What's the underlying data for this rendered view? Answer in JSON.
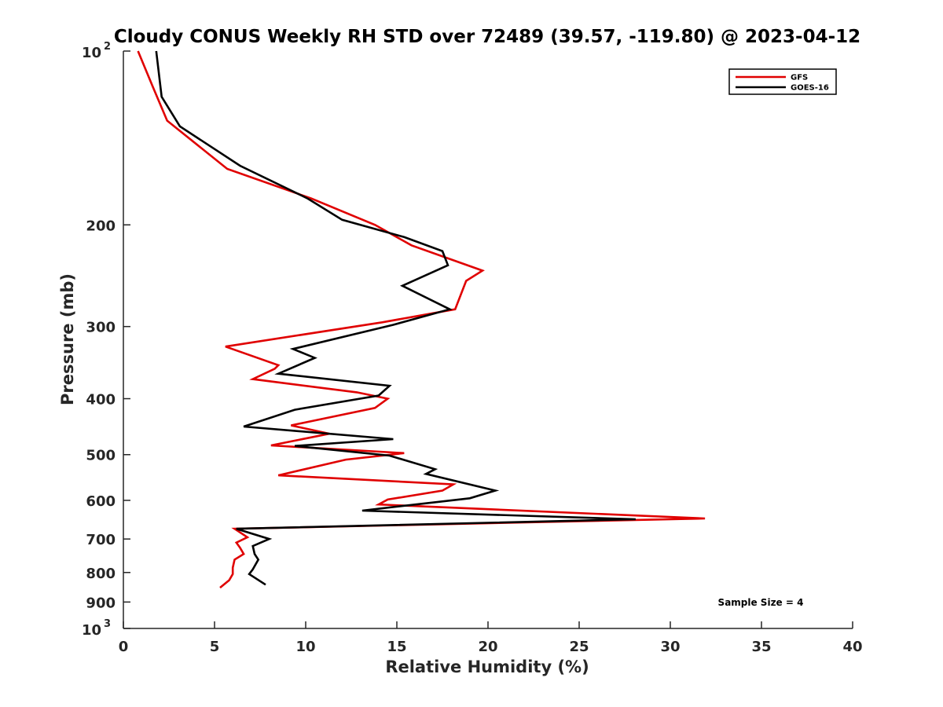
{
  "chart_data": {
    "type": "line",
    "title": "Cloudy CONUS Weekly RH STD over 72489 (39.57, -119.80) @ 2023-04-12",
    "xlabel": "Relative Humidity (%)",
    "ylabel": "Pressure (mb)",
    "xlim": [
      0,
      40
    ],
    "ylim": [
      100,
      1000
    ],
    "yscale": "log",
    "y_reversed": true,
    "grid": false,
    "legend_position": "top-right",
    "xticks": [
      "0",
      "5",
      "10",
      "15",
      "20",
      "25",
      "30",
      "35",
      "40"
    ],
    "yticks": [
      {
        "value": 100,
        "base": "10",
        "exp": "2"
      },
      {
        "value": 200,
        "label": "200"
      },
      {
        "value": 300,
        "label": "300"
      },
      {
        "value": 400,
        "label": "400"
      },
      {
        "value": 500,
        "label": "500"
      },
      {
        "value": 600,
        "label": "600"
      },
      {
        "value": 700,
        "label": "700"
      },
      {
        "value": 800,
        "label": "800"
      },
      {
        "value": 900,
        "label": "900"
      },
      {
        "value": 1000,
        "base": "10",
        "exp": "3"
      }
    ],
    "annotation": "Sample Size = 4",
    "series": [
      {
        "name": "GFS",
        "color": "#e00000",
        "points": [
          [
            0.8,
            100
          ],
          [
            1.6,
            115
          ],
          [
            2.4,
            132
          ],
          [
            5.7,
            160
          ],
          [
            10.3,
            180
          ],
          [
            13.8,
            200
          ],
          [
            15.8,
            217
          ],
          [
            19.7,
            240
          ],
          [
            18.8,
            250
          ],
          [
            18.2,
            280
          ],
          [
            14.2,
            295
          ],
          [
            5.6,
            325
          ],
          [
            8.5,
            350
          ],
          [
            8.3,
            355
          ],
          [
            7.1,
            370
          ],
          [
            12.8,
            390
          ],
          [
            14.5,
            400
          ],
          [
            13.8,
            415
          ],
          [
            9.2,
            445
          ],
          [
            11.3,
            460
          ],
          [
            8.1,
            482
          ],
          [
            15.4,
            497
          ],
          [
            12.2,
            510
          ],
          [
            8.5,
            543
          ],
          [
            18.1,
            563
          ],
          [
            17.5,
            577
          ],
          [
            14.5,
            598
          ],
          [
            14.0,
            610
          ],
          [
            31.9,
            645
          ],
          [
            6.1,
            672
          ],
          [
            6.8,
            695
          ],
          [
            6.2,
            710
          ],
          [
            6.4,
            725
          ],
          [
            6.6,
            743
          ],
          [
            6.1,
            760
          ],
          [
            6.0,
            785
          ],
          [
            6.0,
            805
          ],
          [
            5.8,
            825
          ],
          [
            5.3,
            850
          ]
        ]
      },
      {
        "name": "GOES-16",
        "color": "#000000",
        "points": [
          [
            1.8,
            100
          ],
          [
            2.1,
            120
          ],
          [
            3.1,
            135
          ],
          [
            6.4,
            158
          ],
          [
            10.1,
            180
          ],
          [
            12.0,
            196
          ],
          [
            15.4,
            210
          ],
          [
            17.5,
            222
          ],
          [
            17.8,
            235
          ],
          [
            15.3,
            255
          ],
          [
            17.9,
            280
          ],
          [
            14.8,
            298
          ],
          [
            9.3,
            328
          ],
          [
            10.5,
            340
          ],
          [
            8.5,
            362
          ],
          [
            14.6,
            380
          ],
          [
            14.0,
            395
          ],
          [
            9.4,
            418
          ],
          [
            6.6,
            447
          ],
          [
            14.8,
            470
          ],
          [
            9.4,
            483
          ],
          [
            14.6,
            502
          ],
          [
            17.1,
            530
          ],
          [
            16.6,
            540
          ],
          [
            20.4,
            577
          ],
          [
            19.0,
            595
          ],
          [
            13.1,
            625
          ],
          [
            28.1,
            647
          ],
          [
            6.2,
            672
          ],
          [
            8.0,
            700
          ],
          [
            7.1,
            720
          ],
          [
            7.2,
            743
          ],
          [
            7.4,
            760
          ],
          [
            7.1,
            790
          ],
          [
            6.9,
            805
          ],
          [
            7.8,
            840
          ]
        ]
      }
    ]
  }
}
